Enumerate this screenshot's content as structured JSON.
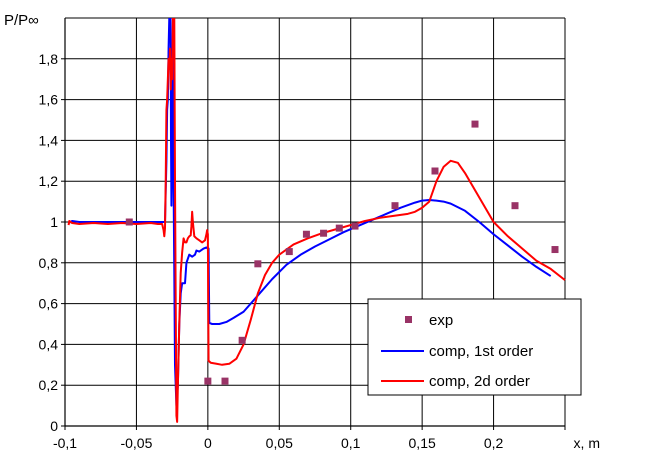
{
  "chart_data": {
    "type": "line",
    "ylabel": "P/P∞",
    "xlabel": "x, m",
    "xlim": [
      -0.1,
      0.25
    ],
    "ylim": [
      0,
      2.0
    ],
    "xticks": [
      {
        "v": -0.1,
        "label": "-0,1"
      },
      {
        "v": -0.05,
        "label": "-0,05"
      },
      {
        "v": 0,
        "label": "0"
      },
      {
        "v": 0.05,
        "label": "0,05"
      },
      {
        "v": 0.1,
        "label": "0,1"
      },
      {
        "v": 0.15,
        "label": "0,15"
      },
      {
        "v": 0.2,
        "label": "0,2"
      },
      {
        "v": 0.25,
        "label": "x, m"
      }
    ],
    "yticks": [
      {
        "v": 0,
        "label": "0"
      },
      {
        "v": 0.2,
        "label": "0,2"
      },
      {
        "v": 0.4,
        "label": "0,4"
      },
      {
        "v": 0.6,
        "label": "0,6"
      },
      {
        "v": 0.8,
        "label": "0,8"
      },
      {
        "v": 1.0,
        "label": "1"
      },
      {
        "v": 1.2,
        "label": "1,2"
      },
      {
        "v": 1.4,
        "label": "1,4"
      },
      {
        "v": 1.6,
        "label": "1,6"
      },
      {
        "v": 1.8,
        "label": "1,8"
      }
    ],
    "grid": true,
    "legend_position": "bottom-right",
    "series": [
      {
        "name": "exp",
        "kind": "scatter",
        "color": "#993366",
        "points": [
          [
            -0.055,
            1.0
          ],
          [
            0.0,
            0.22
          ],
          [
            0.012,
            0.22
          ],
          [
            0.024,
            0.42
          ],
          [
            0.035,
            0.795
          ],
          [
            0.057,
            0.855
          ],
          [
            0.069,
            0.94
          ],
          [
            0.081,
            0.945
          ],
          [
            0.092,
            0.97
          ],
          [
            0.103,
            0.98
          ],
          [
            0.131,
            1.08
          ],
          [
            0.159,
            1.25
          ],
          [
            0.187,
            1.48
          ],
          [
            0.215,
            1.08
          ],
          [
            0.243,
            0.865
          ]
        ]
      },
      {
        "name": "comp, 1st order",
        "kind": "line",
        "color": "#0000ff",
        "points": [
          [
            -0.0975,
            0.995
          ],
          [
            -0.095,
            1.005
          ],
          [
            -0.09,
            1.0
          ],
          [
            -0.07,
            1.0
          ],
          [
            -0.05,
            1.0
          ],
          [
            -0.04,
            1.0
          ],
          [
            -0.032,
            1.0
          ],
          [
            -0.03,
            1.0
          ],
          [
            -0.029,
            1.3
          ],
          [
            -0.0285,
            1.55
          ],
          [
            -0.028,
            1.6
          ],
          [
            -0.0275,
            1.85
          ],
          [
            -0.027,
            2.0
          ],
          [
            -0.0262,
            2.0
          ],
          [
            -0.026,
            1.9
          ],
          [
            -0.0258,
            1.4
          ],
          [
            -0.0255,
            1.08
          ],
          [
            -0.025,
            1.4
          ],
          [
            -0.0245,
            1.85
          ],
          [
            -0.0242,
            1.9
          ],
          [
            -0.024,
            1.2
          ],
          [
            -0.023,
            0.3
          ],
          [
            -0.022,
            0.1
          ],
          [
            -0.021,
            0.2
          ],
          [
            -0.02,
            0.5
          ],
          [
            -0.019,
            0.65
          ],
          [
            -0.018,
            0.7
          ],
          [
            -0.016,
            0.7
          ],
          [
            -0.015,
            0.8
          ],
          [
            -0.013,
            0.84
          ],
          [
            -0.011,
            0.83
          ],
          [
            -0.009,
            0.84
          ],
          [
            -0.008,
            0.86
          ],
          [
            -0.006,
            0.855
          ],
          [
            -0.005,
            0.86
          ],
          [
            -0.003,
            0.87
          ],
          [
            -0.001,
            0.875
          ],
          [
            0.0,
            0.87
          ],
          [
            0.0005,
            0.87
          ],
          [
            0.001,
            0.505
          ],
          [
            0.003,
            0.5
          ],
          [
            0.008,
            0.5
          ],
          [
            0.013,
            0.51
          ],
          [
            0.018,
            0.53
          ],
          [
            0.025,
            0.56
          ],
          [
            0.035,
            0.64
          ],
          [
            0.045,
            0.72
          ],
          [
            0.055,
            0.79
          ],
          [
            0.065,
            0.84
          ],
          [
            0.075,
            0.88
          ],
          [
            0.085,
            0.915
          ],
          [
            0.095,
            0.95
          ],
          [
            0.105,
            0.98
          ],
          [
            0.115,
            1.01
          ],
          [
            0.125,
            1.04
          ],
          [
            0.135,
            1.07
          ],
          [
            0.145,
            1.095
          ],
          [
            0.15,
            1.105
          ],
          [
            0.155,
            1.108
          ],
          [
            0.16,
            1.105
          ],
          [
            0.165,
            1.1
          ],
          [
            0.17,
            1.09
          ],
          [
            0.18,
            1.055
          ],
          [
            0.19,
            1.0
          ],
          [
            0.2,
            0.94
          ],
          [
            0.21,
            0.885
          ],
          [
            0.22,
            0.83
          ],
          [
            0.23,
            0.78
          ],
          [
            0.24,
            0.735
          ]
        ]
      },
      {
        "name": "comp, 2d order",
        "kind": "line",
        "color": "#ff0000",
        "points": [
          [
            -0.0975,
            0.985
          ],
          [
            -0.097,
            1.005
          ],
          [
            -0.095,
            0.995
          ],
          [
            -0.09,
            0.99
          ],
          [
            -0.08,
            0.995
          ],
          [
            -0.07,
            0.99
          ],
          [
            -0.06,
            0.995
          ],
          [
            -0.05,
            0.99
          ],
          [
            -0.04,
            0.995
          ],
          [
            -0.035,
            0.99
          ],
          [
            -0.032,
            0.99
          ],
          [
            -0.031,
            0.96
          ],
          [
            -0.0305,
            0.93
          ],
          [
            -0.03,
            0.97
          ],
          [
            -0.0295,
            1.2
          ],
          [
            -0.029,
            1.55
          ],
          [
            -0.0285,
            1.6
          ],
          [
            -0.028,
            1.7
          ],
          [
            -0.0275,
            1.8
          ],
          [
            -0.027,
            1.75
          ],
          [
            -0.0265,
            1.85
          ],
          [
            -0.026,
            1.65
          ],
          [
            -0.0255,
            1.8
          ],
          [
            -0.025,
            1.7
          ],
          [
            -0.0245,
            2.0
          ],
          [
            -0.024,
            1.9
          ],
          [
            -0.0235,
            2.0
          ],
          [
            -0.023,
            1.2
          ],
          [
            -0.0225,
            0.6
          ],
          [
            -0.022,
            0.05
          ],
          [
            -0.0215,
            0.02
          ],
          [
            -0.021,
            0.2
          ],
          [
            -0.02,
            0.5
          ],
          [
            -0.019,
            0.75
          ],
          [
            -0.018,
            0.85
          ],
          [
            -0.017,
            0.92
          ],
          [
            -0.016,
            0.9
          ],
          [
            -0.015,
            0.9
          ],
          [
            -0.014,
            0.92
          ],
          [
            -0.013,
            0.93
          ],
          [
            -0.012,
            0.935
          ],
          [
            -0.0115,
            0.98
          ],
          [
            -0.011,
            1.05
          ],
          [
            -0.0105,
            1.0
          ],
          [
            -0.0095,
            0.93
          ],
          [
            -0.008,
            0.92
          ],
          [
            -0.006,
            0.91
          ],
          [
            -0.004,
            0.9
          ],
          [
            -0.002,
            0.91
          ],
          [
            -0.001,
            0.94
          ],
          [
            -0.0005,
            0.96
          ],
          [
            0.0,
            0.94
          ],
          [
            0.0005,
            0.32
          ],
          [
            0.002,
            0.31
          ],
          [
            0.006,
            0.305
          ],
          [
            0.01,
            0.3
          ],
          [
            0.015,
            0.305
          ],
          [
            0.02,
            0.33
          ],
          [
            0.025,
            0.4
          ],
          [
            0.03,
            0.52
          ],
          [
            0.035,
            0.65
          ],
          [
            0.04,
            0.74
          ],
          [
            0.045,
            0.8
          ],
          [
            0.05,
            0.84
          ],
          [
            0.06,
            0.89
          ],
          [
            0.07,
            0.92
          ],
          [
            0.08,
            0.945
          ],
          [
            0.09,
            0.965
          ],
          [
            0.1,
            0.985
          ],
          [
            0.11,
            1.005
          ],
          [
            0.12,
            1.02
          ],
          [
            0.13,
            1.03
          ],
          [
            0.14,
            1.04
          ],
          [
            0.145,
            1.05
          ],
          [
            0.15,
            1.07
          ],
          [
            0.155,
            1.1
          ],
          [
            0.16,
            1.2
          ],
          [
            0.165,
            1.27
          ],
          [
            0.17,
            1.3
          ],
          [
            0.175,
            1.29
          ],
          [
            0.18,
            1.24
          ],
          [
            0.19,
            1.12
          ],
          [
            0.2,
            1.0
          ],
          [
            0.21,
            0.93
          ],
          [
            0.22,
            0.87
          ],
          [
            0.23,
            0.81
          ],
          [
            0.24,
            0.77
          ],
          [
            0.25,
            0.715
          ]
        ]
      }
    ]
  }
}
